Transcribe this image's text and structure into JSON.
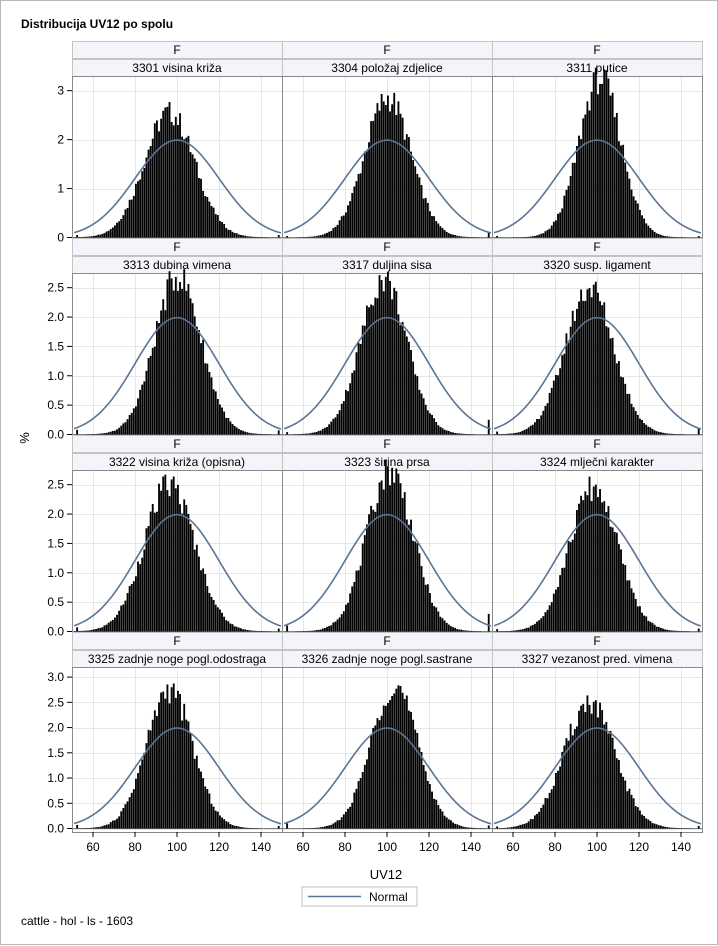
{
  "chart_data": {
    "type": "histogram-panel",
    "title": "Distribucija UV12 po spolu",
    "xlabel": "UV12",
    "ylabel": "%",
    "footnote": "cattle - hol - ls - 1603",
    "legend": {
      "label": "Normal",
      "position": "bottom-center",
      "color": "#5a7594"
    },
    "xlim": [
      50,
      150
    ],
    "x_ticks": [
      60,
      80,
      100,
      120,
      140
    ],
    "normal_curve": {
      "mean": 100,
      "sd": 20,
      "peak_percent": 1.99
    },
    "bin_width": 1,
    "grid": true,
    "rows": [
      {
        "ylim": [
          0,
          3.3
        ],
        "y_ticks": [
          0,
          1,
          2,
          3
        ],
        "y_tick_labels": [
          "0",
          "1",
          "2",
          "3"
        ]
      },
      {
        "ylim": [
          0,
          2.75
        ],
        "y_ticks": [
          0,
          0.5,
          1,
          1.5,
          2,
          2.5
        ],
        "y_tick_labels": [
          "0.0",
          "0.5",
          "1.0",
          "1.5",
          "2.0",
          "2.5"
        ]
      },
      {
        "ylim": [
          0,
          2.75
        ],
        "y_ticks": [
          0,
          0.5,
          1,
          1.5,
          2,
          2.5
        ],
        "y_tick_labels": [
          "0.0",
          "0.5",
          "1.0",
          "1.5",
          "2.0",
          "2.5"
        ]
      },
      {
        "ylim": [
          0,
          3.2
        ],
        "y_ticks": [
          0,
          0.5,
          1,
          1.5,
          2,
          2.5,
          3
        ],
        "y_tick_labels": [
          "0.0",
          "0.5",
          "1.0",
          "1.5",
          "2.0",
          "2.5",
          "3.0"
        ]
      }
    ],
    "panels": [
      {
        "group": "F",
        "trait": "3301 visina križa",
        "mode": 96,
        "peak": 2.55,
        "sd": 12,
        "spike_last": 0.05,
        "spike_first": 0.05
      },
      {
        "group": "F",
        "trait": "3304 položaj zdjelice",
        "mode": 100,
        "peak": 2.85,
        "sd": 11,
        "spike_last": 0.12,
        "spike_first": 0.03
      },
      {
        "group": "F",
        "trait": "3311 putice",
        "mode": 101,
        "peak": 3.25,
        "sd": 10,
        "spike_last": 0.03,
        "spike_first": 0.03
      },
      {
        "group": "F",
        "trait": "3313 dubina vimena",
        "mode": 100,
        "peak": 2.7,
        "sd": 11,
        "spike_last": 0.07,
        "spike_first": 0.08
      },
      {
        "group": "F",
        "trait": "3317 duljina sisa",
        "mode": 98,
        "peak": 2.65,
        "sd": 11,
        "spike_last": 0.25,
        "spike_first": 0.04
      },
      {
        "group": "F",
        "trait": "3320 susp. ligament",
        "mode": 96,
        "peak": 2.5,
        "sd": 11.5,
        "spike_last": 0.1,
        "spike_first": 0.05
      },
      {
        "group": "F",
        "trait": "3322 visina križa (opisna)",
        "mode": 96,
        "peak": 2.5,
        "sd": 12,
        "spike_last": 0.05,
        "spike_first": 0.07
      },
      {
        "group": "F",
        "trait": "3323 širina prsa",
        "mode": 101,
        "peak": 2.75,
        "sd": 11,
        "spike_last": 0.3,
        "spike_first": 0.1
      },
      {
        "group": "F",
        "trait": "3324 mlječni karakter",
        "mode": 98,
        "peak": 2.45,
        "sd": 11.5,
        "spike_last": 0.05,
        "spike_first": 0.04
      },
      {
        "group": "F",
        "trait": "3325 zadnje noge pogl.odostraga",
        "mode": 96,
        "peak": 2.75,
        "sd": 11,
        "spike_last": 0.05,
        "spike_first": 0.07
      },
      {
        "group": "F",
        "trait": "3326 zadnje noge pogl.sastrane",
        "mode": 103,
        "peak": 2.85,
        "sd": 11,
        "spike_last": 0.06,
        "spike_first": 0.1
      },
      {
        "group": "F",
        "trait": "3327 vezanost pred. vimena",
        "mode": 96,
        "peak": 2.5,
        "sd": 12,
        "spike_last": 0.05,
        "spike_first": 0.04
      }
    ]
  }
}
